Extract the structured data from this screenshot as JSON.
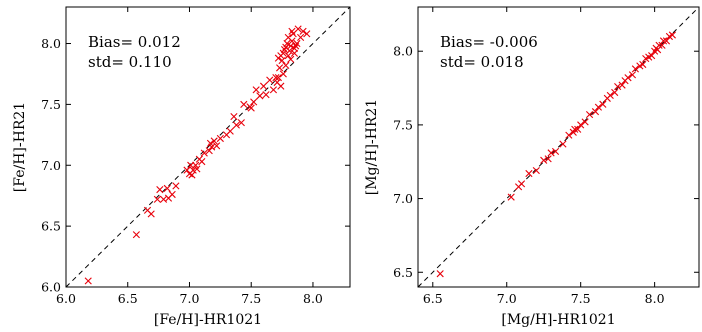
{
  "chart_data": [
    {
      "type": "scatter",
      "xlabel": "[Fe/H]-HR1021",
      "ylabel": "[Fe/H]-HR21",
      "xlim": [
        6.0,
        8.3
      ],
      "ylim": [
        6.0,
        8.3
      ],
      "xticks": [
        "6.0",
        "6.5",
        "7.0",
        "7.5",
        "8.0"
      ],
      "yticks": [
        "6.0",
        "6.5",
        "7.0",
        "7.5",
        "8.0"
      ],
      "annotations": [
        "Bias= 0.012",
        "std= 0.110"
      ],
      "marker": "x",
      "marker_color": "#e8000b",
      "reference_line": "y = x (dashed)",
      "series": [
        {
          "x": [
            6.18,
            6.57,
            6.66,
            6.69,
            6.74,
            6.76,
            6.79,
            6.82,
            6.83,
            6.86,
            6.89,
            6.98,
            7.0,
            7.01,
            7.02,
            7.03,
            7.05,
            7.06,
            7.08,
            7.1,
            7.12,
            7.16,
            7.17,
            7.18,
            7.2,
            7.22,
            7.25,
            7.3,
            7.33,
            7.36,
            7.38,
            7.42,
            7.44,
            7.49,
            7.5,
            7.52,
            7.54,
            7.57,
            7.6,
            7.62,
            7.65,
            7.68,
            7.7,
            7.71,
            7.72,
            7.73,
            7.74,
            7.75,
            7.76,
            7.77,
            7.78,
            7.79,
            7.8,
            7.81,
            7.82,
            7.83,
            7.84,
            7.85,
            7.86,
            7.87,
            7.88,
            7.9,
            7.92,
            7.95,
            7.72,
            7.74,
            7.8,
            7.82,
            7.85,
            7.78,
            7.83,
            7.76
          ],
          "y": [
            6.05,
            6.43,
            6.63,
            6.6,
            6.72,
            6.8,
            6.72,
            6.81,
            6.73,
            6.76,
            6.83,
            6.96,
            6.93,
            7.0,
            6.92,
            6.96,
            7.0,
            6.97,
            7.05,
            7.03,
            7.1,
            7.12,
            7.18,
            7.15,
            7.2,
            7.16,
            7.22,
            7.25,
            7.28,
            7.4,
            7.33,
            7.35,
            7.5,
            7.48,
            7.47,
            7.52,
            7.62,
            7.57,
            7.65,
            7.58,
            7.7,
            7.62,
            7.72,
            7.68,
            7.88,
            7.8,
            7.9,
            7.86,
            7.92,
            7.95,
            7.82,
            8.0,
            8.05,
            7.94,
            7.98,
            8.1,
            8.08,
            7.96,
            7.98,
            8.0,
            8.12,
            8.05,
            8.1,
            8.08,
            7.72,
            7.65,
            7.9,
            7.87,
            7.92,
            7.97,
            8.02,
            7.75
          ]
        }
      ]
    },
    {
      "type": "scatter",
      "xlabel": "[Mg/H]-HR1021",
      "ylabel": "[Mg/H]-HR21",
      "xlim": [
        6.4,
        8.3
      ],
      "ylim": [
        6.4,
        8.3
      ],
      "xticks": [
        "6.5",
        "7.0",
        "7.5",
        "8.0"
      ],
      "yticks": [
        "6.5",
        "7.0",
        "7.5",
        "8.0"
      ],
      "annotations": [
        "Bias= -0.006",
        "std= 0.018"
      ],
      "marker": "x",
      "marker_color": "#e8000b",
      "reference_line": "y = x (dashed)",
      "series": [
        {
          "x": [
            6.55,
            7.03,
            7.08,
            7.1,
            7.15,
            7.2,
            7.25,
            7.28,
            7.3,
            7.33,
            7.38,
            7.42,
            7.45,
            7.46,
            7.48,
            7.5,
            7.53,
            7.56,
            7.6,
            7.62,
            7.65,
            7.68,
            7.7,
            7.73,
            7.75,
            7.78,
            7.8,
            7.82,
            7.85,
            7.87,
            7.9,
            7.92,
            7.94,
            7.96,
            7.98,
            8.0,
            8.01,
            8.02,
            8.03,
            8.05,
            8.06,
            8.08,
            8.1,
            8.12
          ],
          "y": [
            6.49,
            7.01,
            7.08,
            7.1,
            7.17,
            7.19,
            7.26,
            7.27,
            7.31,
            7.32,
            7.37,
            7.43,
            7.45,
            7.47,
            7.47,
            7.5,
            7.52,
            7.57,
            7.59,
            7.62,
            7.64,
            7.68,
            7.7,
            7.72,
            7.76,
            7.77,
            7.8,
            7.82,
            7.84,
            7.88,
            7.9,
            7.91,
            7.95,
            7.96,
            7.97,
            8.0,
            8.02,
            8.01,
            8.04,
            8.04,
            8.07,
            8.07,
            8.1,
            8.11
          ]
        }
      ]
    }
  ]
}
